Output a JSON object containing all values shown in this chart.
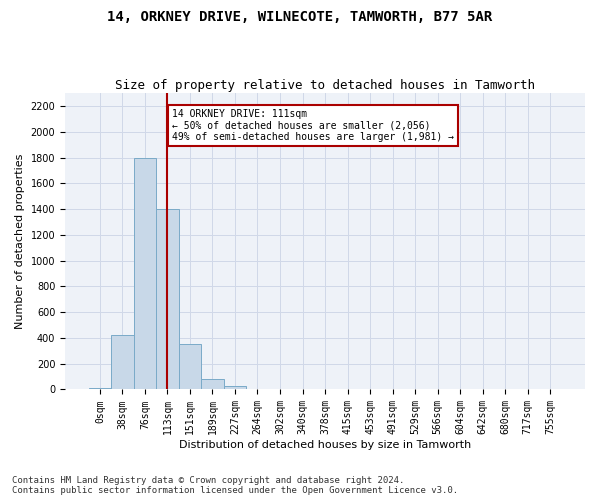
{
  "title1": "14, ORKNEY DRIVE, WILNECOTE, TAMWORTH, B77 5AR",
  "title2": "Size of property relative to detached houses in Tamworth",
  "xlabel": "Distribution of detached houses by size in Tamworth",
  "ylabel": "Number of detached properties",
  "bar_color": "#c8d8e8",
  "bar_edge_color": "#7aaac8",
  "vline_color": "#aa0000",
  "vline_x": 3,
  "annotation_text": "14 ORKNEY DRIVE: 111sqm\n← 50% of detached houses are smaller (2,056)\n49% of semi-detached houses are larger (1,981) →",
  "annotation_box_color": "white",
  "annotation_box_edge": "#aa0000",
  "categories": [
    "0sqm",
    "38sqm",
    "76sqm",
    "113sqm",
    "151sqm",
    "189sqm",
    "227sqm",
    "264sqm",
    "302sqm",
    "340sqm",
    "378sqm",
    "415sqm",
    "453sqm",
    "491sqm",
    "529sqm",
    "566sqm",
    "604sqm",
    "642sqm",
    "680sqm",
    "717sqm",
    "755sqm"
  ],
  "values": [
    15,
    420,
    1800,
    1400,
    350,
    80,
    25,
    0,
    0,
    0,
    0,
    0,
    0,
    0,
    0,
    0,
    0,
    0,
    0,
    0,
    0
  ],
  "ylim": [
    0,
    2300
  ],
  "yticks": [
    0,
    200,
    400,
    600,
    800,
    1000,
    1200,
    1400,
    1600,
    1800,
    2000,
    2200
  ],
  "grid_color": "#d0d8e8",
  "background_color": "#eef2f8",
  "footer_text": "Contains HM Land Registry data © Crown copyright and database right 2024.\nContains public sector information licensed under the Open Government Licence v3.0.",
  "title_fontsize": 10,
  "subtitle_fontsize": 9,
  "axis_label_fontsize": 8,
  "tick_fontsize": 7,
  "footer_fontsize": 6.5
}
